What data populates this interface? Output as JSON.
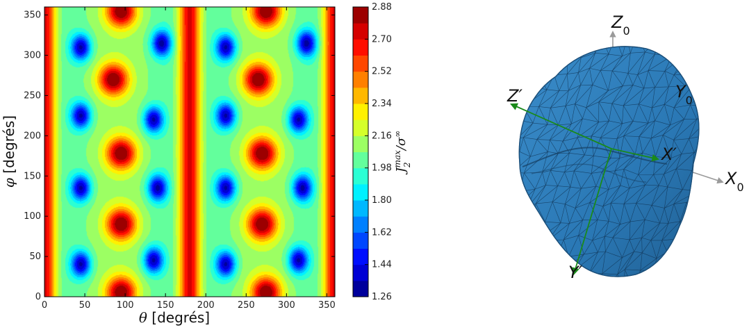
{
  "chart_data": [
    {
      "type": "heatmap",
      "xlabel": {
        "symbol": "θ",
        "text": " [degrés]"
      },
      "ylabel": {
        "symbol": "φ",
        "text": " [degrés]"
      },
      "xlim": [
        0,
        360
      ],
      "ylim": [
        0,
        360
      ],
      "x_ticks": [
        "0",
        "50",
        "100",
        "150",
        "200",
        "250",
        "300",
        "350"
      ],
      "y_ticks": [
        "0",
        "50",
        "100",
        "150",
        "200",
        "250",
        "300",
        "350"
      ],
      "x_tick_values": [
        0,
        50,
        100,
        150,
        200,
        250,
        300,
        350
      ],
      "y_tick_values": [
        0,
        50,
        100,
        150,
        200,
        250,
        300,
        350
      ],
      "colorbar": {
        "label": {
          "base": "J",
          "sub": "2",
          "sup": "max",
          "rest": "/σ",
          "rest_sup": "∞"
        },
        "range": [
          1.26,
          2.88
        ],
        "ticks": [
          "1.26",
          "1.44",
          "1.62",
          "1.80",
          "1.98",
          "2.16",
          "2.34",
          "2.52",
          "2.70",
          "2.88"
        ],
        "tick_values": [
          1.26,
          1.44,
          1.62,
          1.8,
          1.98,
          2.16,
          2.34,
          2.52,
          2.7,
          2.88
        ],
        "levels": 18,
        "colormap": "jet"
      },
      "features": {
        "vertical_ridges_theta": [
          0,
          180,
          360
        ],
        "hot_spots": [
          {
            "theta": 95,
            "phi": 355
          },
          {
            "theta": 85,
            "phi": 270
          },
          {
            "theta": 95,
            "phi": 178
          },
          {
            "theta": 95,
            "phi": 90
          },
          {
            "theta": 95,
            "phi": 5
          },
          {
            "theta": 275,
            "phi": 355
          },
          {
            "theta": 265,
            "phi": 270
          },
          {
            "theta": 270,
            "phi": 178
          },
          {
            "theta": 270,
            "phi": 90
          },
          {
            "theta": 275,
            "phi": 5
          }
        ],
        "cold_spots": [
          {
            "theta": 45,
            "phi": 310
          },
          {
            "theta": 145,
            "phi": 315
          },
          {
            "theta": 45,
            "phi": 225
          },
          {
            "theta": 135,
            "phi": 220
          },
          {
            "theta": 45,
            "phi": 135
          },
          {
            "theta": 140,
            "phi": 135
          },
          {
            "theta": 45,
            "phi": 40
          },
          {
            "theta": 135,
            "phi": 45
          },
          {
            "theta": 225,
            "phi": 310
          },
          {
            "theta": 325,
            "phi": 315
          },
          {
            "theta": 225,
            "phi": 225
          },
          {
            "theta": 315,
            "phi": 220
          },
          {
            "theta": 225,
            "phi": 135
          },
          {
            "theta": 320,
            "phi": 135
          },
          {
            "theta": 225,
            "phi": 40
          },
          {
            "theta": 315,
            "phi": 45
          }
        ]
      }
    },
    {
      "type": "3d-diagram",
      "object": "polyhedral grain mesh",
      "colors": {
        "mesh": "#2a78b5",
        "local_axes": "#1a8a1a",
        "global_axes": "#999999"
      },
      "global_axes": [
        {
          "name": "Z",
          "sub": "0"
        },
        {
          "name": "Y",
          "sub": "0"
        },
        {
          "name": "X",
          "sub": "0"
        }
      ],
      "local_axes": [
        {
          "name": "Z′"
        },
        {
          "name": "X′"
        },
        {
          "name": "Y′"
        }
      ]
    }
  ]
}
